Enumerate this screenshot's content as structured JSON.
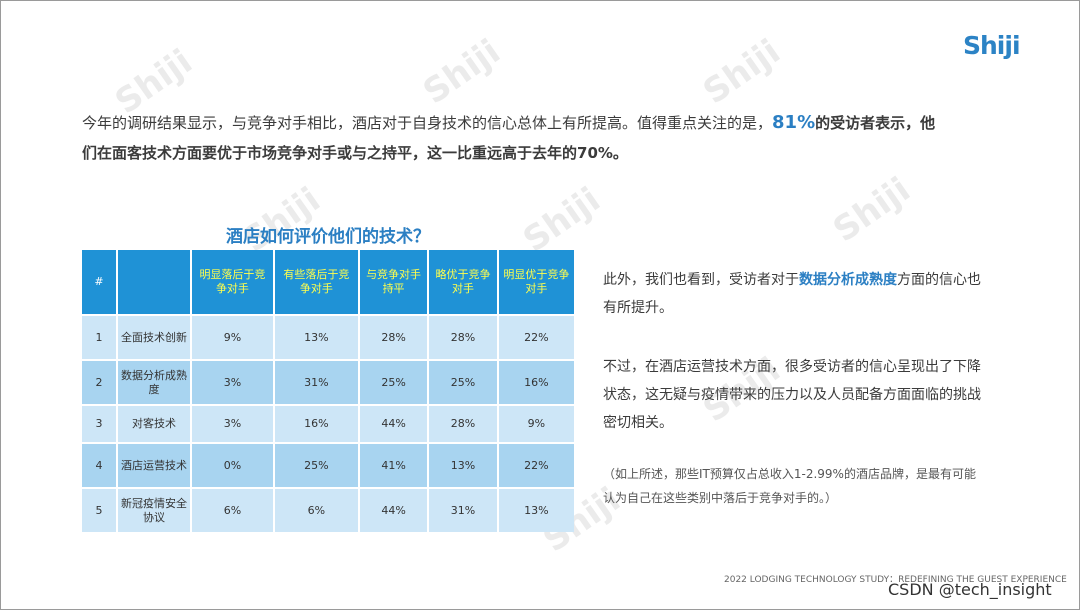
{
  "brand": {
    "logo": "Shiji",
    "watermark": "Shiji"
  },
  "intro": {
    "line1_pre": "今年的调研结果显示，与竞争对手相比，酒店对于自身技术的信心总体上有所提高。值得重点关注的是，",
    "pct": "81%",
    "line1_post": "的受访者表示，他",
    "line2": "们在面客技术方面要优于市场竞争对手或与之持平，这一比重远高于去年的70%。"
  },
  "table": {
    "title": "酒店如何评价他们的技术？",
    "headers": [
      "#",
      "",
      "明显落后于竞争对手",
      "有些落后于竞争对手",
      "与竞争对手持平",
      "略优于竞争对手",
      "明显优于竞争对手"
    ],
    "rows": [
      {
        "num": "1",
        "label": "全面技术创新",
        "values": [
          "9%",
          "13%",
          "28%",
          "28%",
          "22%"
        ]
      },
      {
        "num": "2",
        "label": "数据分析成熟度",
        "values": [
          "3%",
          "31%",
          "25%",
          "25%",
          "16%"
        ]
      },
      {
        "num": "3",
        "label": "对客技术",
        "values": [
          "3%",
          "16%",
          "44%",
          "28%",
          "9%"
        ]
      },
      {
        "num": "4",
        "label": "酒店运营技术",
        "values": [
          "0%",
          "25%",
          "41%",
          "13%",
          "22%"
        ]
      },
      {
        "num": "5",
        "label": "新冠疫情安全协议",
        "values": [
          "6%",
          "6%",
          "44%",
          "31%",
          "13%"
        ]
      }
    ]
  },
  "side": {
    "p1_pre": "此外，我们也看到，受访者对于",
    "p1_highlight": "数据分析成熟度",
    "p1_post": "方面的信心也有所提升。",
    "p2": "不过，在酒店运营技术方面，很多受访者的信心呈现出了下降状态，这无疑与疫情带来的压力以及人员配备方面面临的挑战密切相关。",
    "note": "（如上所述，那些IT预算仅占总收入1-2.99%的酒店品牌，是最有可能认为自己在这些类别中落后于竞争对手的。）"
  },
  "footer": "2022 LODGING TECHNOLOGY STUDY：REDEFINING THE GUEST EXPERIENCE",
  "credit": "CSDN @tech_insight"
}
